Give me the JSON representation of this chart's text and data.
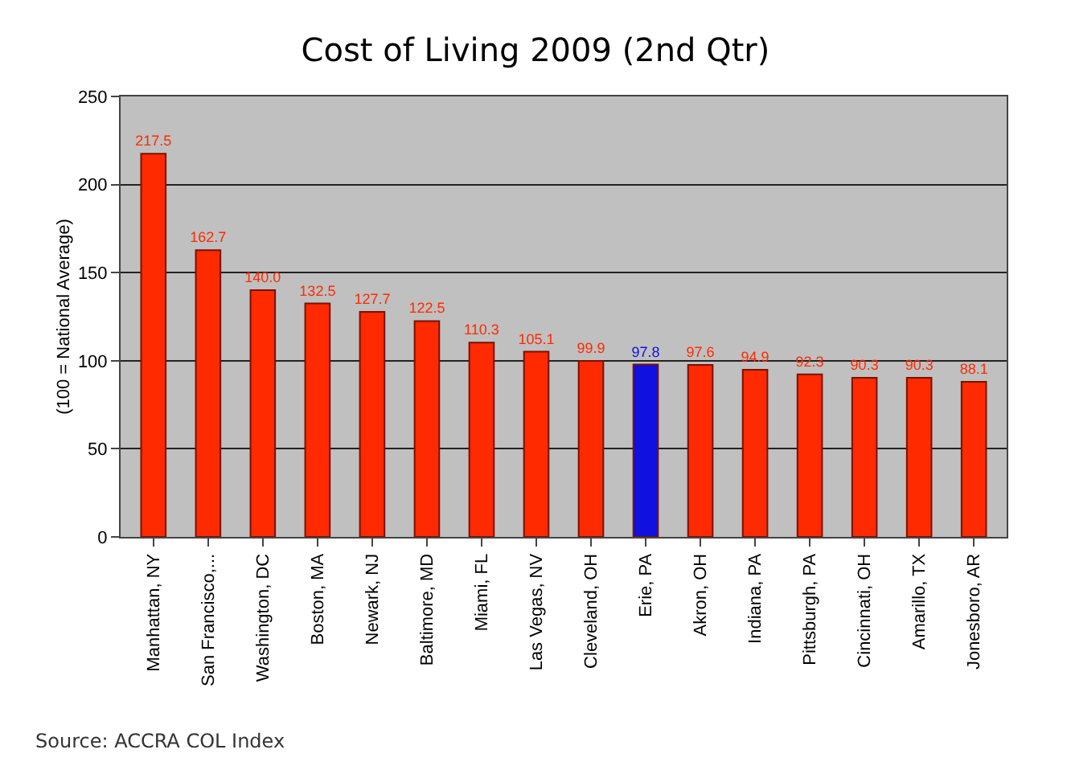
{
  "chart_data": {
    "type": "bar",
    "title": "Cost of Living 2009 (2nd Qtr)",
    "ylabel": "(100 = National Average)",
    "categories": [
      "Manhattan, NY",
      "San Francisco,...",
      "Washington, DC",
      "Boston, MA",
      "Newark, NJ",
      "Baltimore, MD",
      "Miami, FL",
      "Las Vegas, NV",
      "Cleveland, OH",
      "Erie, PA",
      "Akron, OH",
      "Indiana, PA",
      "Pittsburgh, PA",
      "Cincinnati, OH",
      "Amarillo, TX",
      "Jonesboro, AR"
    ],
    "values": [
      217.5,
      162.7,
      140.0,
      132.5,
      127.7,
      122.5,
      110.3,
      105.1,
      99.9,
      97.8,
      97.6,
      94.9,
      92.3,
      90.3,
      90.3,
      88.1
    ],
    "value_labels": [
      "217.5",
      "162.7",
      "140.0",
      "132.5",
      "127.7",
      "122.5",
      "110.3",
      "105.1",
      "99.9",
      "97.8",
      "97.6",
      "94.9",
      "92.3",
      "90.3",
      "90.3",
      "88.1"
    ],
    "colors": [
      "#ff2a00",
      "#ff2a00",
      "#ff2a00",
      "#ff2a00",
      "#ff2a00",
      "#ff2a00",
      "#ff2a00",
      "#ff2a00",
      "#ff2a00",
      "#1010e0",
      "#ff2a00",
      "#ff2a00",
      "#ff2a00",
      "#ff2a00",
      "#ff2a00",
      "#ff2a00"
    ],
    "ylim": [
      0,
      250
    ],
    "yticks": [
      0,
      50,
      100,
      150,
      200,
      250
    ],
    "grid": "y",
    "annotations": [
      "Source: ACCRA COL Index"
    ]
  }
}
